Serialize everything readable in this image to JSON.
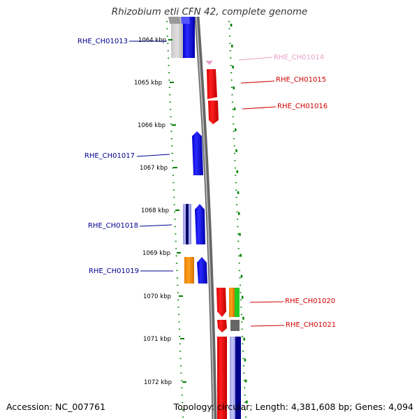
{
  "header": {
    "title": "Rhizobium etli CFN 42, complete genome"
  },
  "footer": {
    "accession": "Accession: NC_007761",
    "summary": "Topology: circular; Length: 4,381,608 bp; Genes: 4,094"
  },
  "colors": {
    "forward_labels": "#00008b",
    "reverse_labels": "#cc0000",
    "faded_label": "#e8a0c8",
    "ticks": "#008000",
    "backbone": "#888888"
  },
  "map": {
    "ticks": [
      {
        "label": "1064 kbp"
      },
      {
        "label": "1065 kbp"
      },
      {
        "label": "1066 kbp"
      },
      {
        "label": "1067 kbp"
      },
      {
        "label": "1068 kbp"
      },
      {
        "label": "1069 kbp"
      },
      {
        "label": "1070 kbp"
      },
      {
        "label": "1071 kbp"
      },
      {
        "label": "1072 kbp"
      }
    ],
    "genes": [
      {
        "label": "RHE_CH01013",
        "strand": "forward"
      },
      {
        "label": "RHE_CH01014",
        "strand": "reverse",
        "faded": true
      },
      {
        "label": "RHE_CH01015",
        "strand": "reverse"
      },
      {
        "label": "RHE_CH01016",
        "strand": "reverse"
      },
      {
        "label": "RHE_CH01017",
        "strand": "forward"
      },
      {
        "label": "RHE_CH01018",
        "strand": "forward"
      },
      {
        "label": "RHE_CH01019",
        "strand": "forward"
      },
      {
        "label": "RHE_CH01020",
        "strand": "reverse"
      },
      {
        "label": "RHE_CH01021",
        "strand": "reverse"
      }
    ]
  }
}
